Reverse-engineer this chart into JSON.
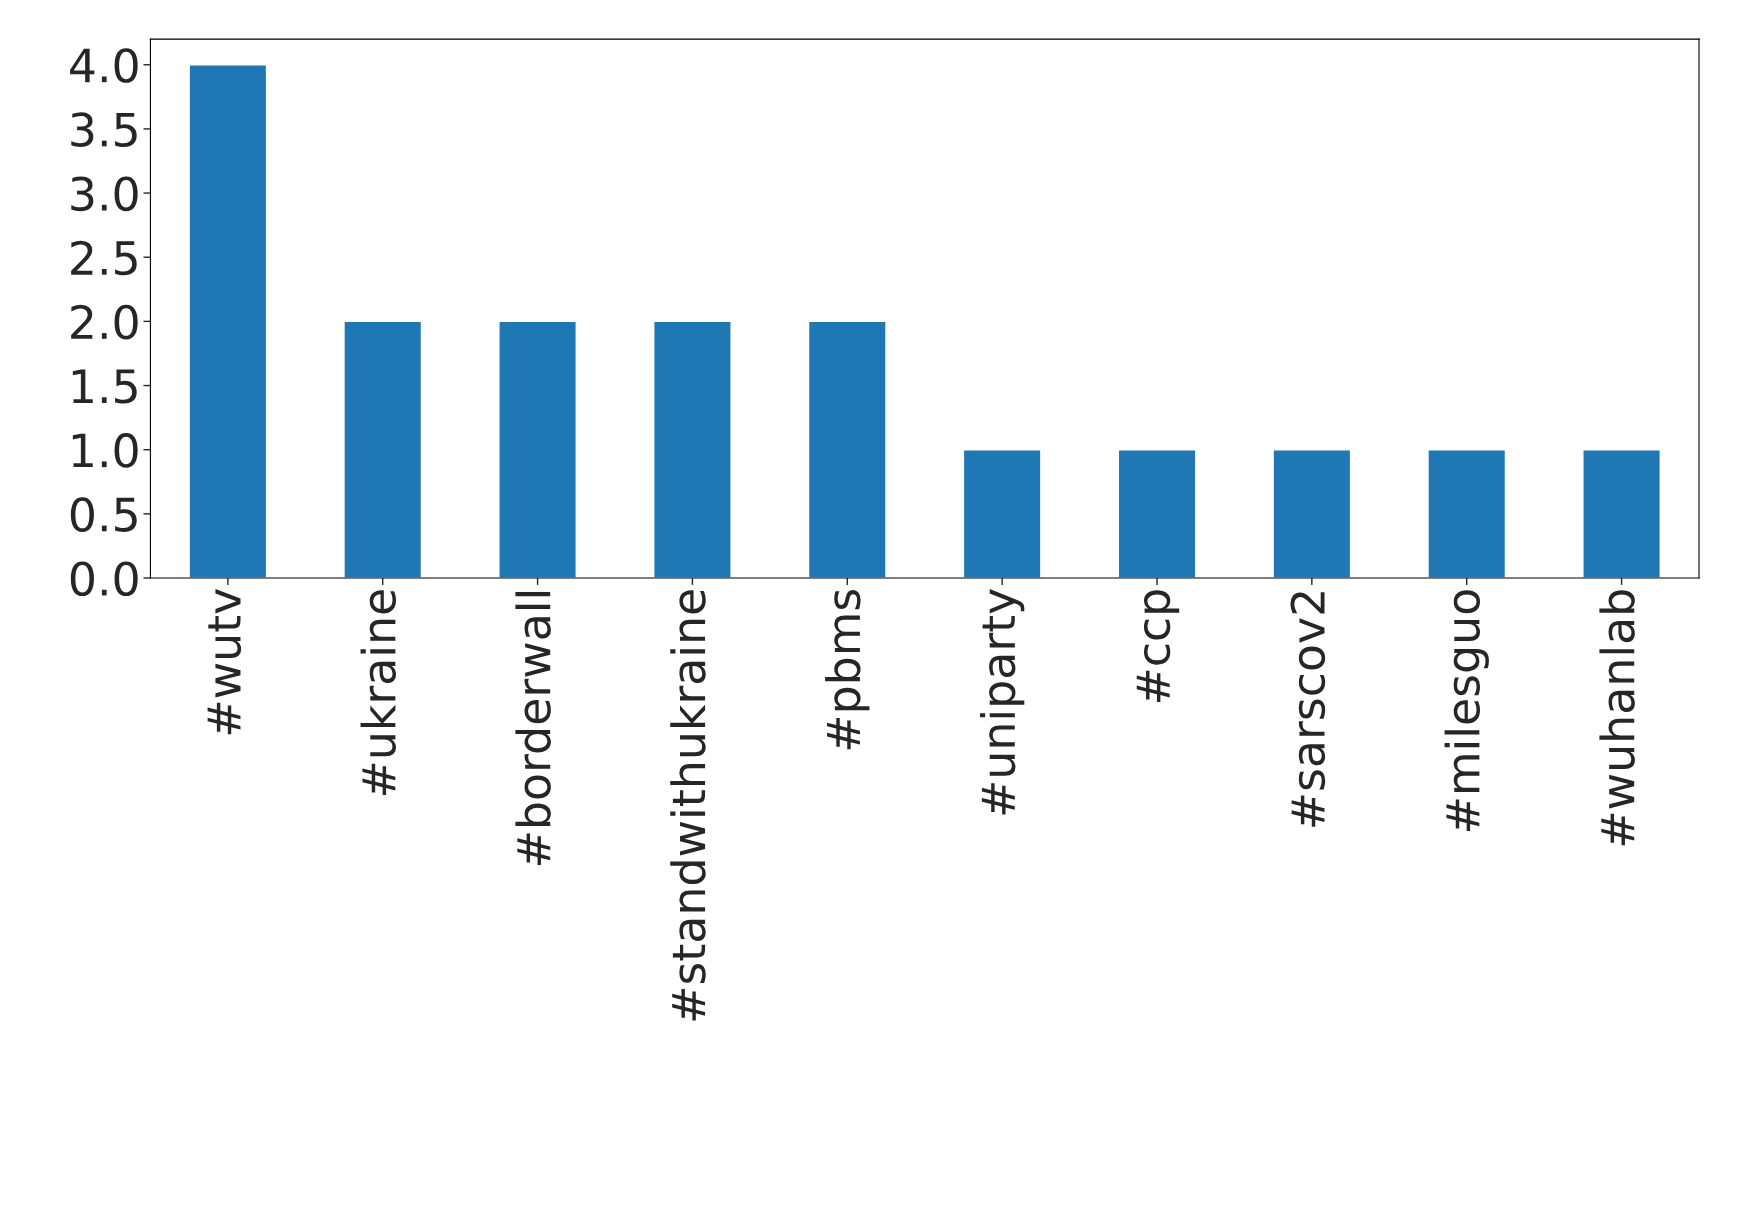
{
  "chart_data": {
    "type": "bar",
    "categories": [
      "#wutv",
      "#ukraine",
      "#borderwall",
      "#standwithukraine",
      "#pbms",
      "#uniparty",
      "#ccp",
      "#sarscov2",
      "#milesguo",
      "#wuhanlab"
    ],
    "values": [
      4,
      2,
      2,
      2,
      2,
      1,
      1,
      1,
      1,
      1
    ],
    "color": "#1f77b4",
    "ylim": [
      0,
      4.2
    ],
    "yticks": [
      {
        "value": 0,
        "label": "0.0"
      },
      {
        "value": 0.5,
        "label": "0.5"
      },
      {
        "value": 1,
        "label": "1.0"
      },
      {
        "value": 1.5,
        "label": "1.5"
      },
      {
        "value": 2,
        "label": "2.0"
      },
      {
        "value": 2.5,
        "label": "2.5"
      },
      {
        "value": 3,
        "label": "3.0"
      },
      {
        "value": 3.5,
        "label": "3.5"
      },
      {
        "value": 4,
        "label": "4.0"
      }
    ],
    "grid": false,
    "legend": false
  }
}
